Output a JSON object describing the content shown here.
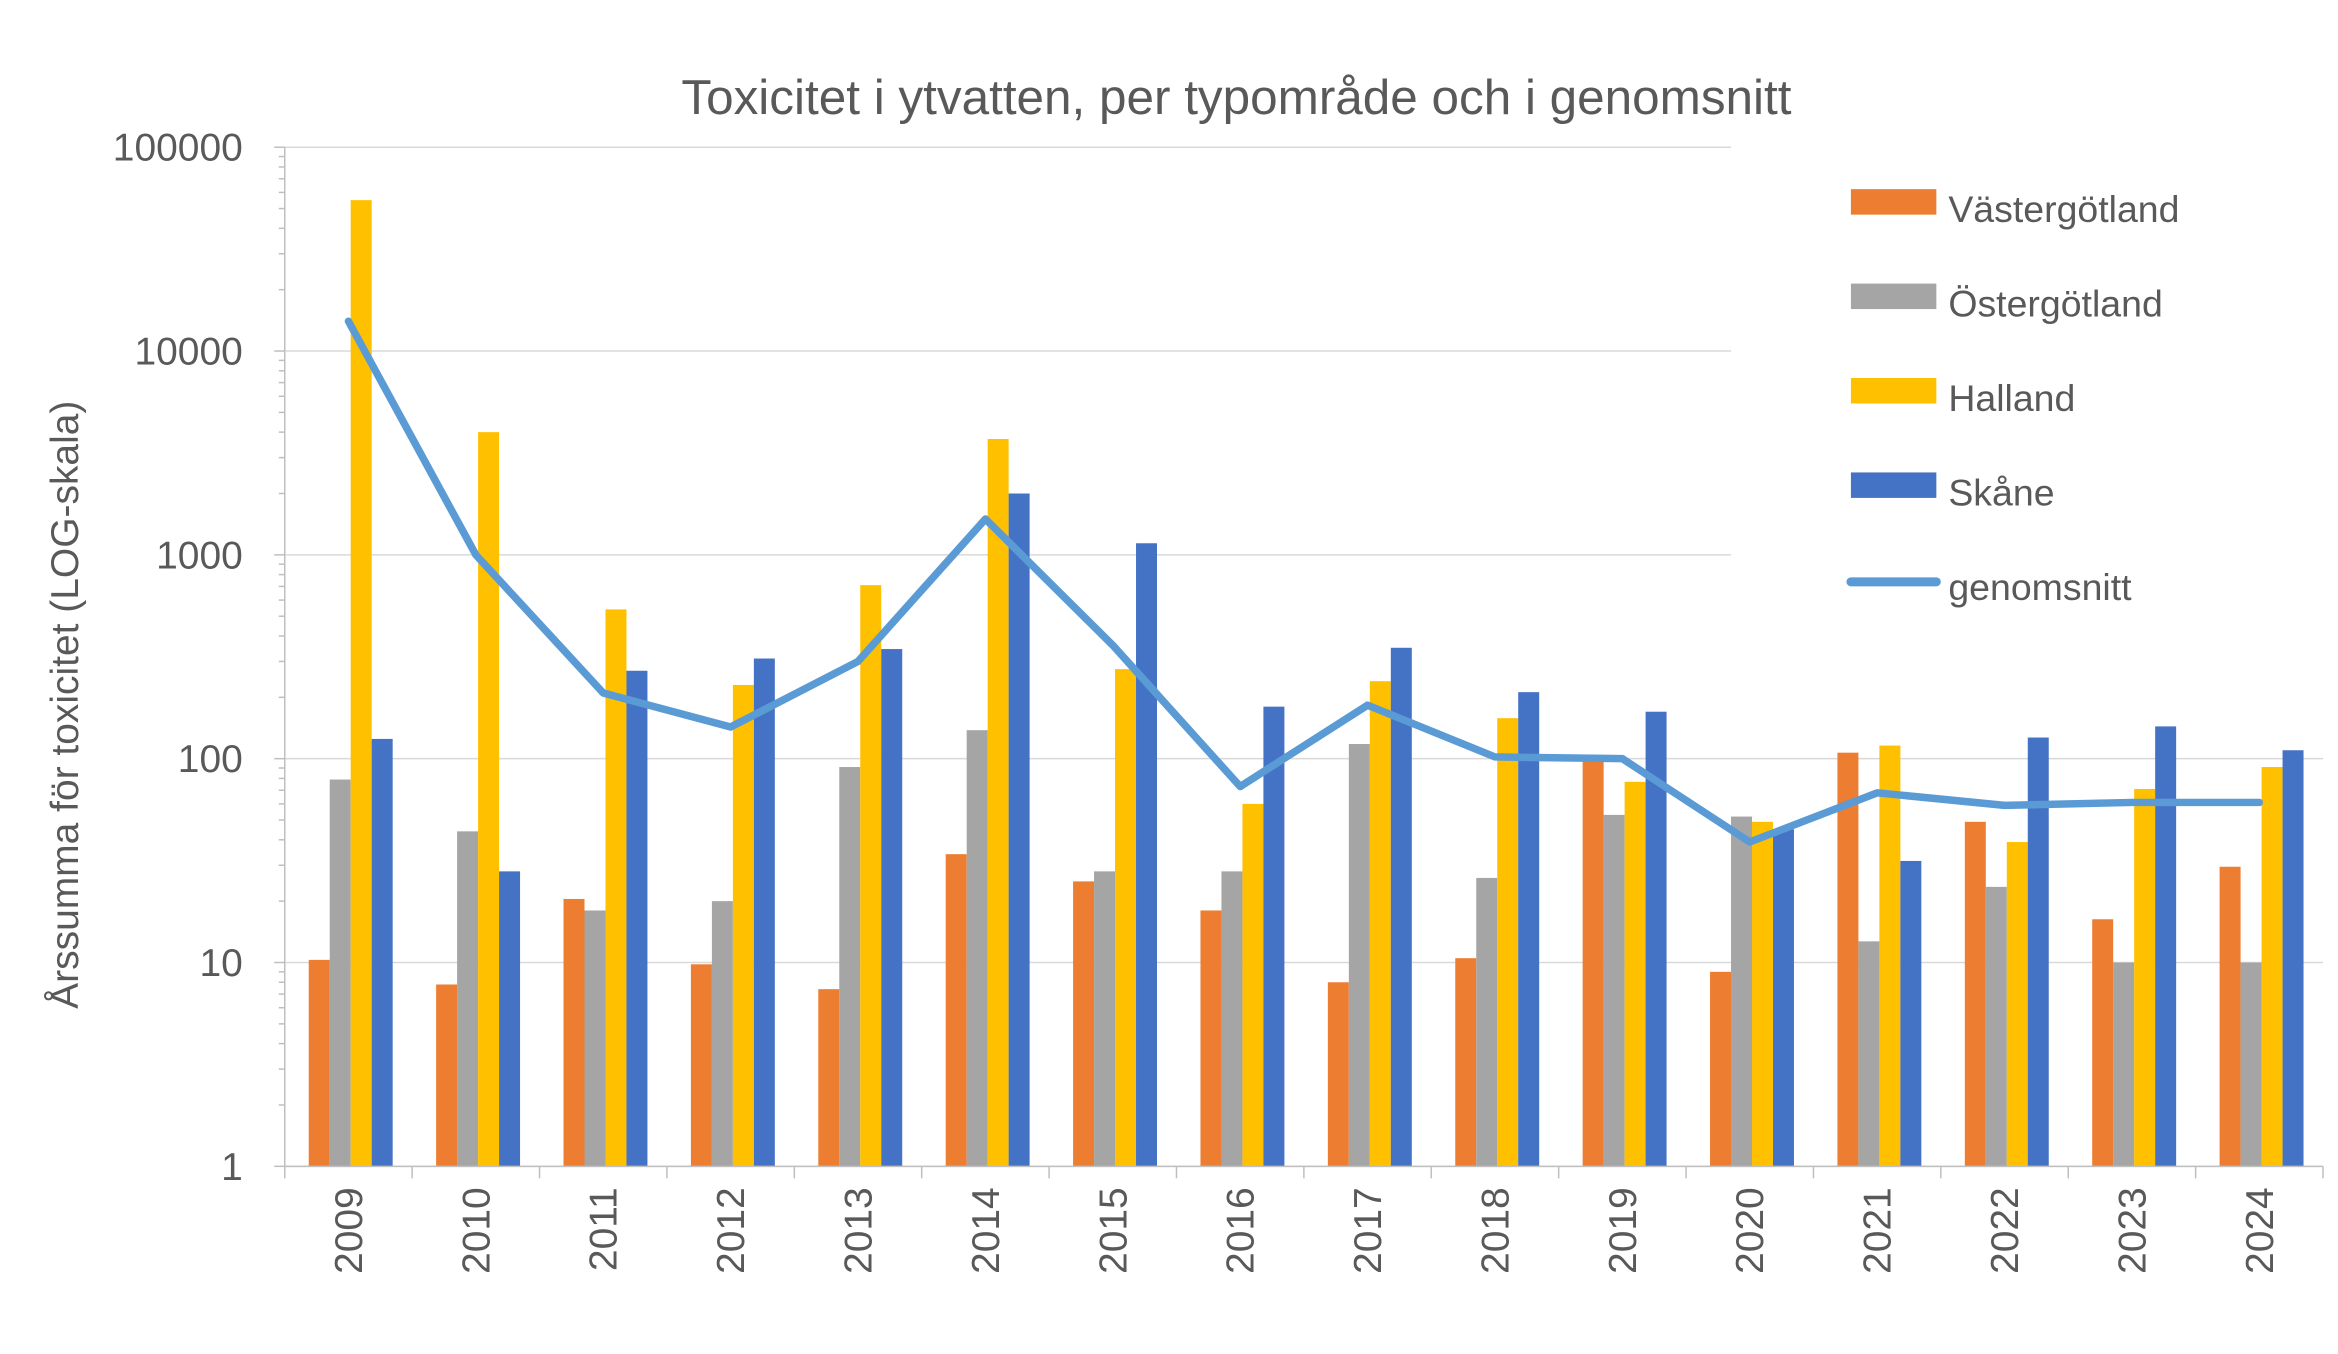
{
  "chart_data": {
    "type": "bar",
    "title": "Toxicitet i ytvatten, per typområde och i genomsnitt",
    "xlabel": "",
    "ylabel": "Årssumma för toxicitet (LOG-skala)",
    "yscale": "log",
    "ylim": [
      1,
      100000
    ],
    "yticks": [
      "1",
      "10",
      "100",
      "1000",
      "10000",
      "100000"
    ],
    "grid": true,
    "legend_position": "right",
    "categories": [
      "2009",
      "2010",
      "2011",
      "2012",
      "2013",
      "2014",
      "2015",
      "2016",
      "2017",
      "2018",
      "2019",
      "2020",
      "2021",
      "2022",
      "2023",
      "2024"
    ],
    "series": [
      {
        "name": "Västergötland",
        "type": "bar",
        "color": "#ED7D31",
        "values": [
          10.3,
          7.8,
          20.5,
          9.8,
          7.4,
          34,
          25,
          18,
          8,
          10.5,
          97,
          9,
          107,
          49,
          16.3,
          29.5
        ]
      },
      {
        "name": "Östergötland",
        "type": "bar",
        "color": "#A5A5A5",
        "values": [
          79,
          44,
          18,
          20,
          91,
          138,
          28,
          28,
          118,
          26,
          53,
          52,
          12.7,
          23.5,
          10,
          10
        ]
      },
      {
        "name": "Halland",
        "type": "bar",
        "color": "#FFC000",
        "values": [
          55000,
          4000,
          540,
          230,
          710,
          3700,
          275,
          60,
          240,
          158,
          77,
          49,
          116,
          39,
          71,
          91
        ]
      },
      {
        "name": "Skåne",
        "type": "bar",
        "color": "#4472C4",
        "values": [
          125,
          28,
          270,
          310,
          345,
          2000,
          1140,
          180,
          350,
          212,
          170,
          45,
          31.5,
          127,
          144,
          110
        ]
      },
      {
        "name": "genomsnitt",
        "type": "line",
        "color": "#5B9BD5",
        "values": [
          14000,
          1000,
          210,
          143,
          300,
          1500,
          360,
          73,
          183,
          102,
          100,
          39,
          68,
          59,
          61,
          61
        ]
      }
    ]
  }
}
